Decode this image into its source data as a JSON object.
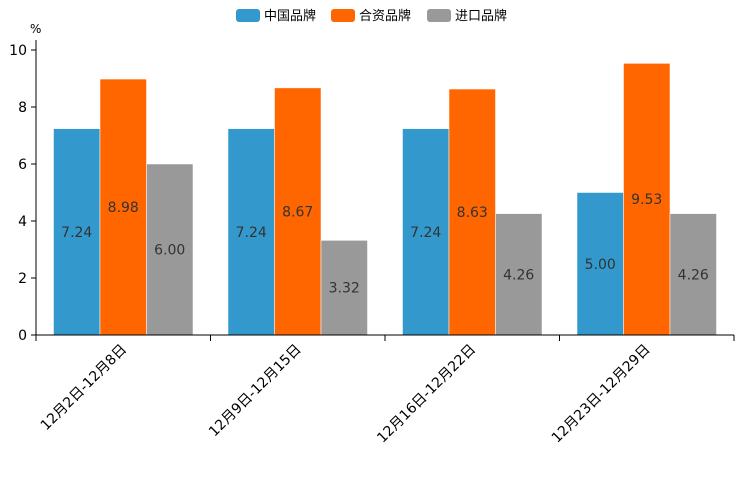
{
  "chart_data": {
    "type": "bar",
    "title": "",
    "xlabel": "",
    "ylabel": "",
    "unit": "%",
    "ylim": [
      0,
      10
    ],
    "yticks": [
      "0",
      "2",
      "4",
      "6",
      "8",
      "10"
    ],
    "categories": [
      "12月2日-12月8日",
      "12月9日-12月15日",
      "12月16日-12月22日",
      "12月23日-12月29日"
    ],
    "series": [
      {
        "name": "中国品牌",
        "color": "#3399cc",
        "values": [
          7.24,
          7.24,
          7.24,
          5.0
        ],
        "labels": [
          "7.24",
          "7.24",
          "7.24",
          "5.00"
        ]
      },
      {
        "name": "合资品牌",
        "color": "#ff6600",
        "values": [
          8.98,
          8.67,
          8.63,
          9.53
        ],
        "labels": [
          "8.98",
          "8.67",
          "8.63",
          "9.53"
        ]
      },
      {
        "name": "进口品牌",
        "color": "#999999",
        "values": [
          6.0,
          3.32,
          4.26,
          4.26
        ],
        "labels": [
          "6.00",
          "3.32",
          "4.26",
          "4.26"
        ]
      }
    ],
    "legend_position": "top-center",
    "grid": false
  }
}
